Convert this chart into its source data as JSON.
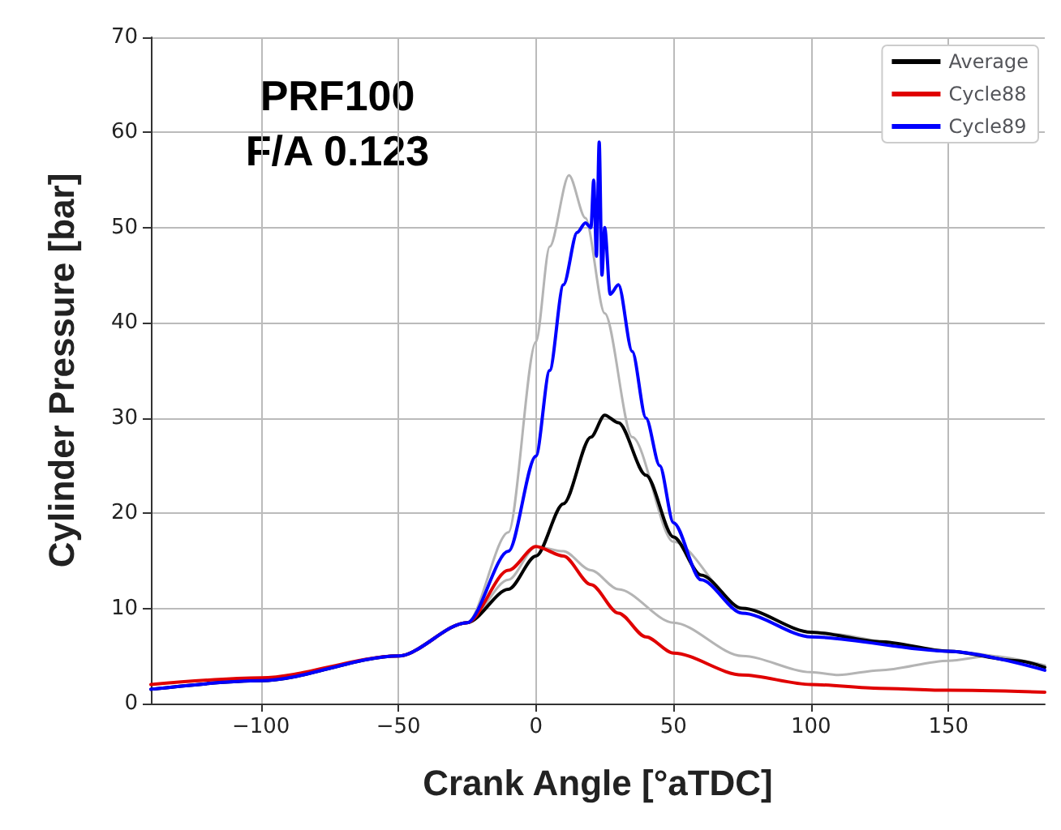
{
  "chart_data": {
    "type": "line",
    "xlabel": "Crank Angle [°aTDC]",
    "ylabel": "Cylinder Pressure [bar]",
    "annotations": [
      "PRF100",
      "F/A 0.123"
    ],
    "xlim": [
      -140,
      185
    ],
    "xticks": [
      -100,
      -50,
      0,
      50,
      100,
      150
    ],
    "ylim": [
      0,
      70
    ],
    "yticks": [
      0,
      10,
      20,
      30,
      40,
      50,
      60,
      70
    ],
    "grid": true,
    "legend": "top right",
    "marker": "none",
    "line_style": "solid",
    "series": [
      {
        "color": "#b4b4b4",
        "x": [
          -140,
          -100,
          -50,
          -25,
          -10,
          0,
          5,
          12,
          18,
          25,
          35,
          50,
          75,
          100,
          150,
          185
        ],
        "values": [
          1.5,
          2.4,
          5,
          8.5,
          18,
          38,
          48,
          55.5,
          51,
          41,
          28,
          17,
          10,
          7.5,
          5.5,
          4
        ]
      },
      {
        "color": "#b4b4b4",
        "x": [
          -140,
          -100,
          -50,
          -25,
          -10,
          0,
          10,
          20,
          30,
          50,
          75,
          100,
          110,
          125,
          150,
          165,
          185
        ],
        "values": [
          1.5,
          2.4,
          5,
          8.5,
          13,
          16.5,
          16,
          14,
          12,
          8.5,
          5,
          3.3,
          3,
          3.5,
          4.5,
          5,
          4
        ]
      },
      {
        "name": "Average",
        "color": "#000000",
        "x": [
          -140,
          -100,
          -50,
          -25,
          -10,
          0,
          10,
          20,
          25,
          30,
          40,
          50,
          60,
          75,
          100,
          125,
          150,
          175,
          185
        ],
        "values": [
          1.5,
          2.4,
          5,
          8.5,
          12,
          15.5,
          21,
          28,
          30.3,
          29.5,
          24,
          17.5,
          13.5,
          10,
          7.5,
          6.5,
          5.5,
          4.5,
          3.8
        ]
      },
      {
        "name": "Cycle88",
        "color": "#e00000",
        "x": [
          -140,
          -100,
          -50,
          -25,
          -10,
          0,
          10,
          20,
          30,
          40,
          50,
          75,
          100,
          125,
          150,
          185
        ],
        "values": [
          2,
          2.7,
          5,
          8.5,
          14,
          16.5,
          15.5,
          12.5,
          9.5,
          7,
          5.3,
          3,
          2,
          1.6,
          1.4,
          1.2
        ]
      },
      {
        "name": "Cycle89",
        "color": "#0000ff",
        "x": [
          -140,
          -100,
          -50,
          -25,
          -10,
          0,
          5,
          10,
          15,
          18,
          20,
          21,
          22,
          23,
          24,
          25,
          27,
          30,
          35,
          40,
          45,
          50,
          60,
          75,
          100,
          150,
          185
        ],
        "values": [
          1.5,
          2.4,
          5,
          8.5,
          16,
          26,
          35,
          44,
          49.5,
          50.5,
          50,
          55,
          47,
          59,
          45,
          50,
          43,
          44,
          37,
          30,
          25,
          19,
          13,
          9.5,
          7,
          5.5,
          3.5
        ]
      }
    ]
  }
}
